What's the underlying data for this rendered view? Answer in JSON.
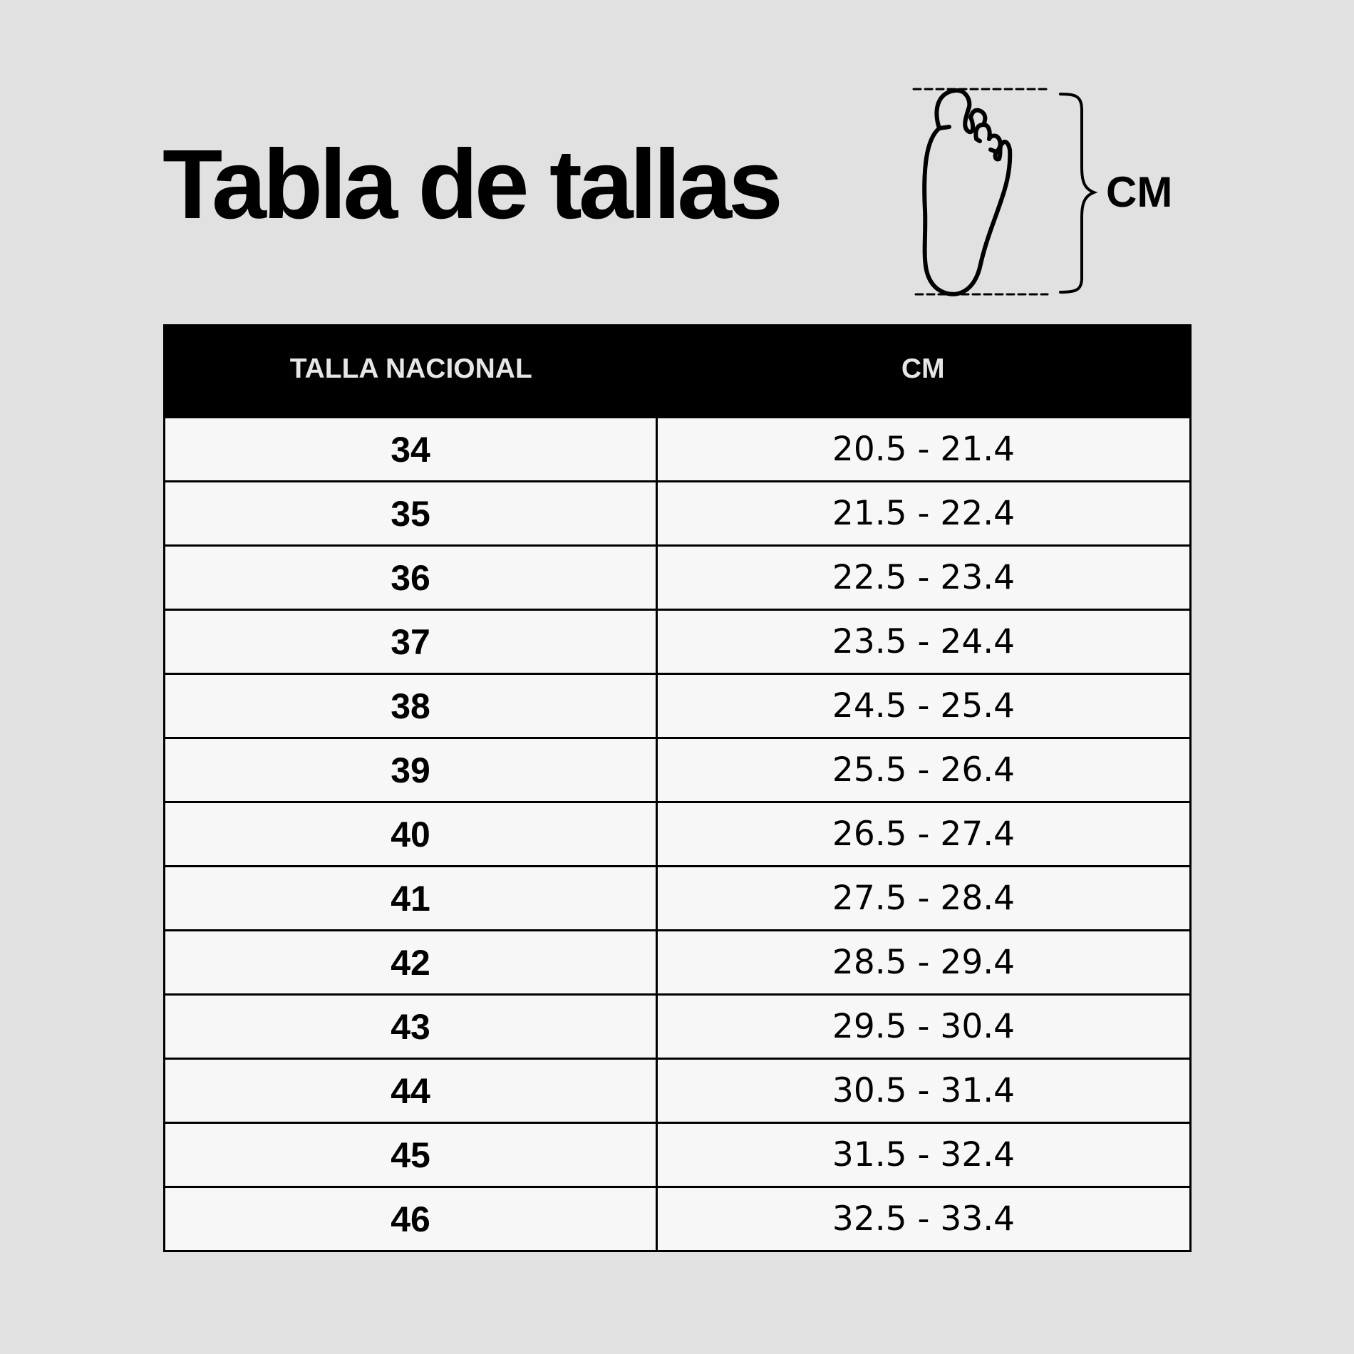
{
  "title": "Tabla de tallas",
  "diagram": {
    "icon": "foot-outline-icon",
    "label": "CM"
  },
  "table": {
    "headers": [
      "TALLA NACIONAL",
      "CM"
    ],
    "rows": [
      {
        "size": "34",
        "cm": "20.5 - 21.4"
      },
      {
        "size": "35",
        "cm": "21.5 - 22.4"
      },
      {
        "size": "36",
        "cm": "22.5 - 23.4"
      },
      {
        "size": "37",
        "cm": "23.5 - 24.4"
      },
      {
        "size": "38",
        "cm": "24.5 - 25.4"
      },
      {
        "size": "39",
        "cm": "25.5 - 26.4"
      },
      {
        "size": "40",
        "cm": "26.5 - 27.4"
      },
      {
        "size": "41",
        "cm": "27.5 - 28.4"
      },
      {
        "size": "42",
        "cm": "28.5 - 29.4"
      },
      {
        "size": "43",
        "cm": "29.5 - 30.4"
      },
      {
        "size": "44",
        "cm": "30.5 - 31.4"
      },
      {
        "size": "45",
        "cm": "31.5 - 32.4"
      },
      {
        "size": "46",
        "cm": "32.5 - 33.4"
      }
    ]
  },
  "colors": {
    "background": "#e1e1e1",
    "header_bg": "#000000",
    "cell_bg": "#f8f7f8"
  }
}
